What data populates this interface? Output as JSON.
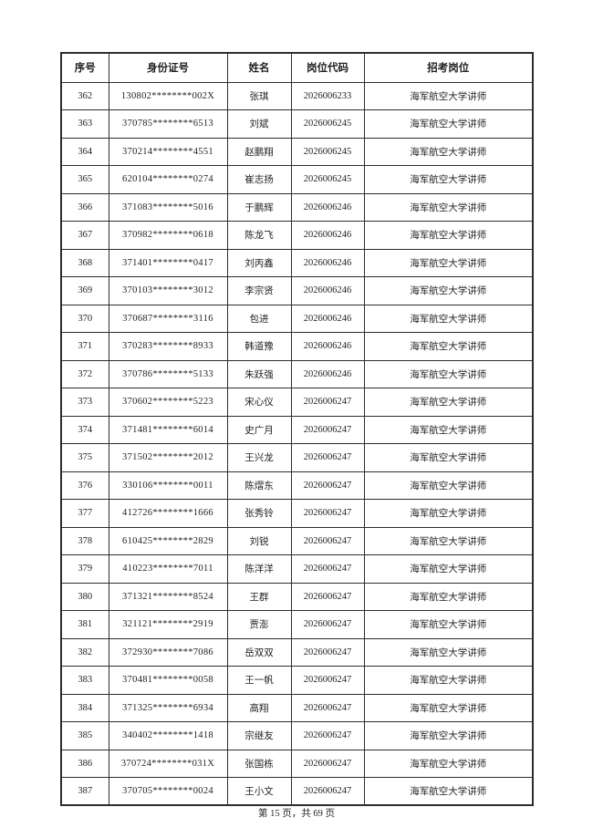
{
  "document": {
    "footer_text": "第 15 页，共 69 页"
  },
  "table": {
    "headers": [
      "序号",
      "身份证号",
      "姓名",
      "岗位代码",
      "招考岗位"
    ],
    "rows": [
      [
        "362",
        "130802********002X",
        "张琪",
        "2026006233",
        "海军航空大学讲师"
      ],
      [
        "363",
        "370785********6513",
        "刘斌",
        "2026006245",
        "海军航空大学讲师"
      ],
      [
        "364",
        "370214********4551",
        "赵鹏翔",
        "2026006245",
        "海军航空大学讲师"
      ],
      [
        "365",
        "620104********0274",
        "崔志扬",
        "2026006245",
        "海军航空大学讲师"
      ],
      [
        "366",
        "371083********5016",
        "于鹏辉",
        "2026006246",
        "海军航空大学讲师"
      ],
      [
        "367",
        "370982********0618",
        "陈龙飞",
        "2026006246",
        "海军航空大学讲师"
      ],
      [
        "368",
        "371401********0417",
        "刘丙鑫",
        "2026006246",
        "海军航空大学讲师"
      ],
      [
        "369",
        "370103********3012",
        "李宗贤",
        "2026006246",
        "海军航空大学讲师"
      ],
      [
        "370",
        "370687********3116",
        "包进",
        "2026006246",
        "海军航空大学讲师"
      ],
      [
        "371",
        "370283********8933",
        "韩道豫",
        "2026006246",
        "海军航空大学讲师"
      ],
      [
        "372",
        "370786********5133",
        "朱跃强",
        "2026006246",
        "海军航空大学讲师"
      ],
      [
        "373",
        "370602********5223",
        "宋心仪",
        "2026006247",
        "海军航空大学讲师"
      ],
      [
        "374",
        "371481********6014",
        "史广月",
        "2026006247",
        "海军航空大学讲师"
      ],
      [
        "375",
        "371502********2012",
        "王兴龙",
        "2026006247",
        "海军航空大学讲师"
      ],
      [
        "376",
        "330106********0011",
        "陈熠东",
        "2026006247",
        "海军航空大学讲师"
      ],
      [
        "377",
        "412726********1666",
        "张秀铃",
        "2026006247",
        "海军航空大学讲师"
      ],
      [
        "378",
        "610425********2829",
        "刘锐",
        "2026006247",
        "海军航空大学讲师"
      ],
      [
        "379",
        "410223********7011",
        "陈洋洋",
        "2026006247",
        "海军航空大学讲师"
      ],
      [
        "380",
        "371321********8524",
        "王群",
        "2026006247",
        "海军航空大学讲师"
      ],
      [
        "381",
        "321121********2919",
        "贾澎",
        "2026006247",
        "海军航空大学讲师"
      ],
      [
        "382",
        "372930********7086",
        "岳双双",
        "2026006247",
        "海军航空大学讲师"
      ],
      [
        "383",
        "370481********0058",
        "王一帆",
        "2026006247",
        "海军航空大学讲师"
      ],
      [
        "384",
        "371325********6934",
        "高翔",
        "2026006247",
        "海军航空大学讲师"
      ],
      [
        "385",
        "340402********1418",
        "宗继友",
        "2026006247",
        "海军航空大学讲师"
      ],
      [
        "386",
        "370724********031X",
        "张国栋",
        "2026006247",
        "海军航空大学讲师"
      ],
      [
        "387",
        "370705********0024",
        "王小文",
        "2026006247",
        "海军航空大学讲师"
      ]
    ]
  }
}
